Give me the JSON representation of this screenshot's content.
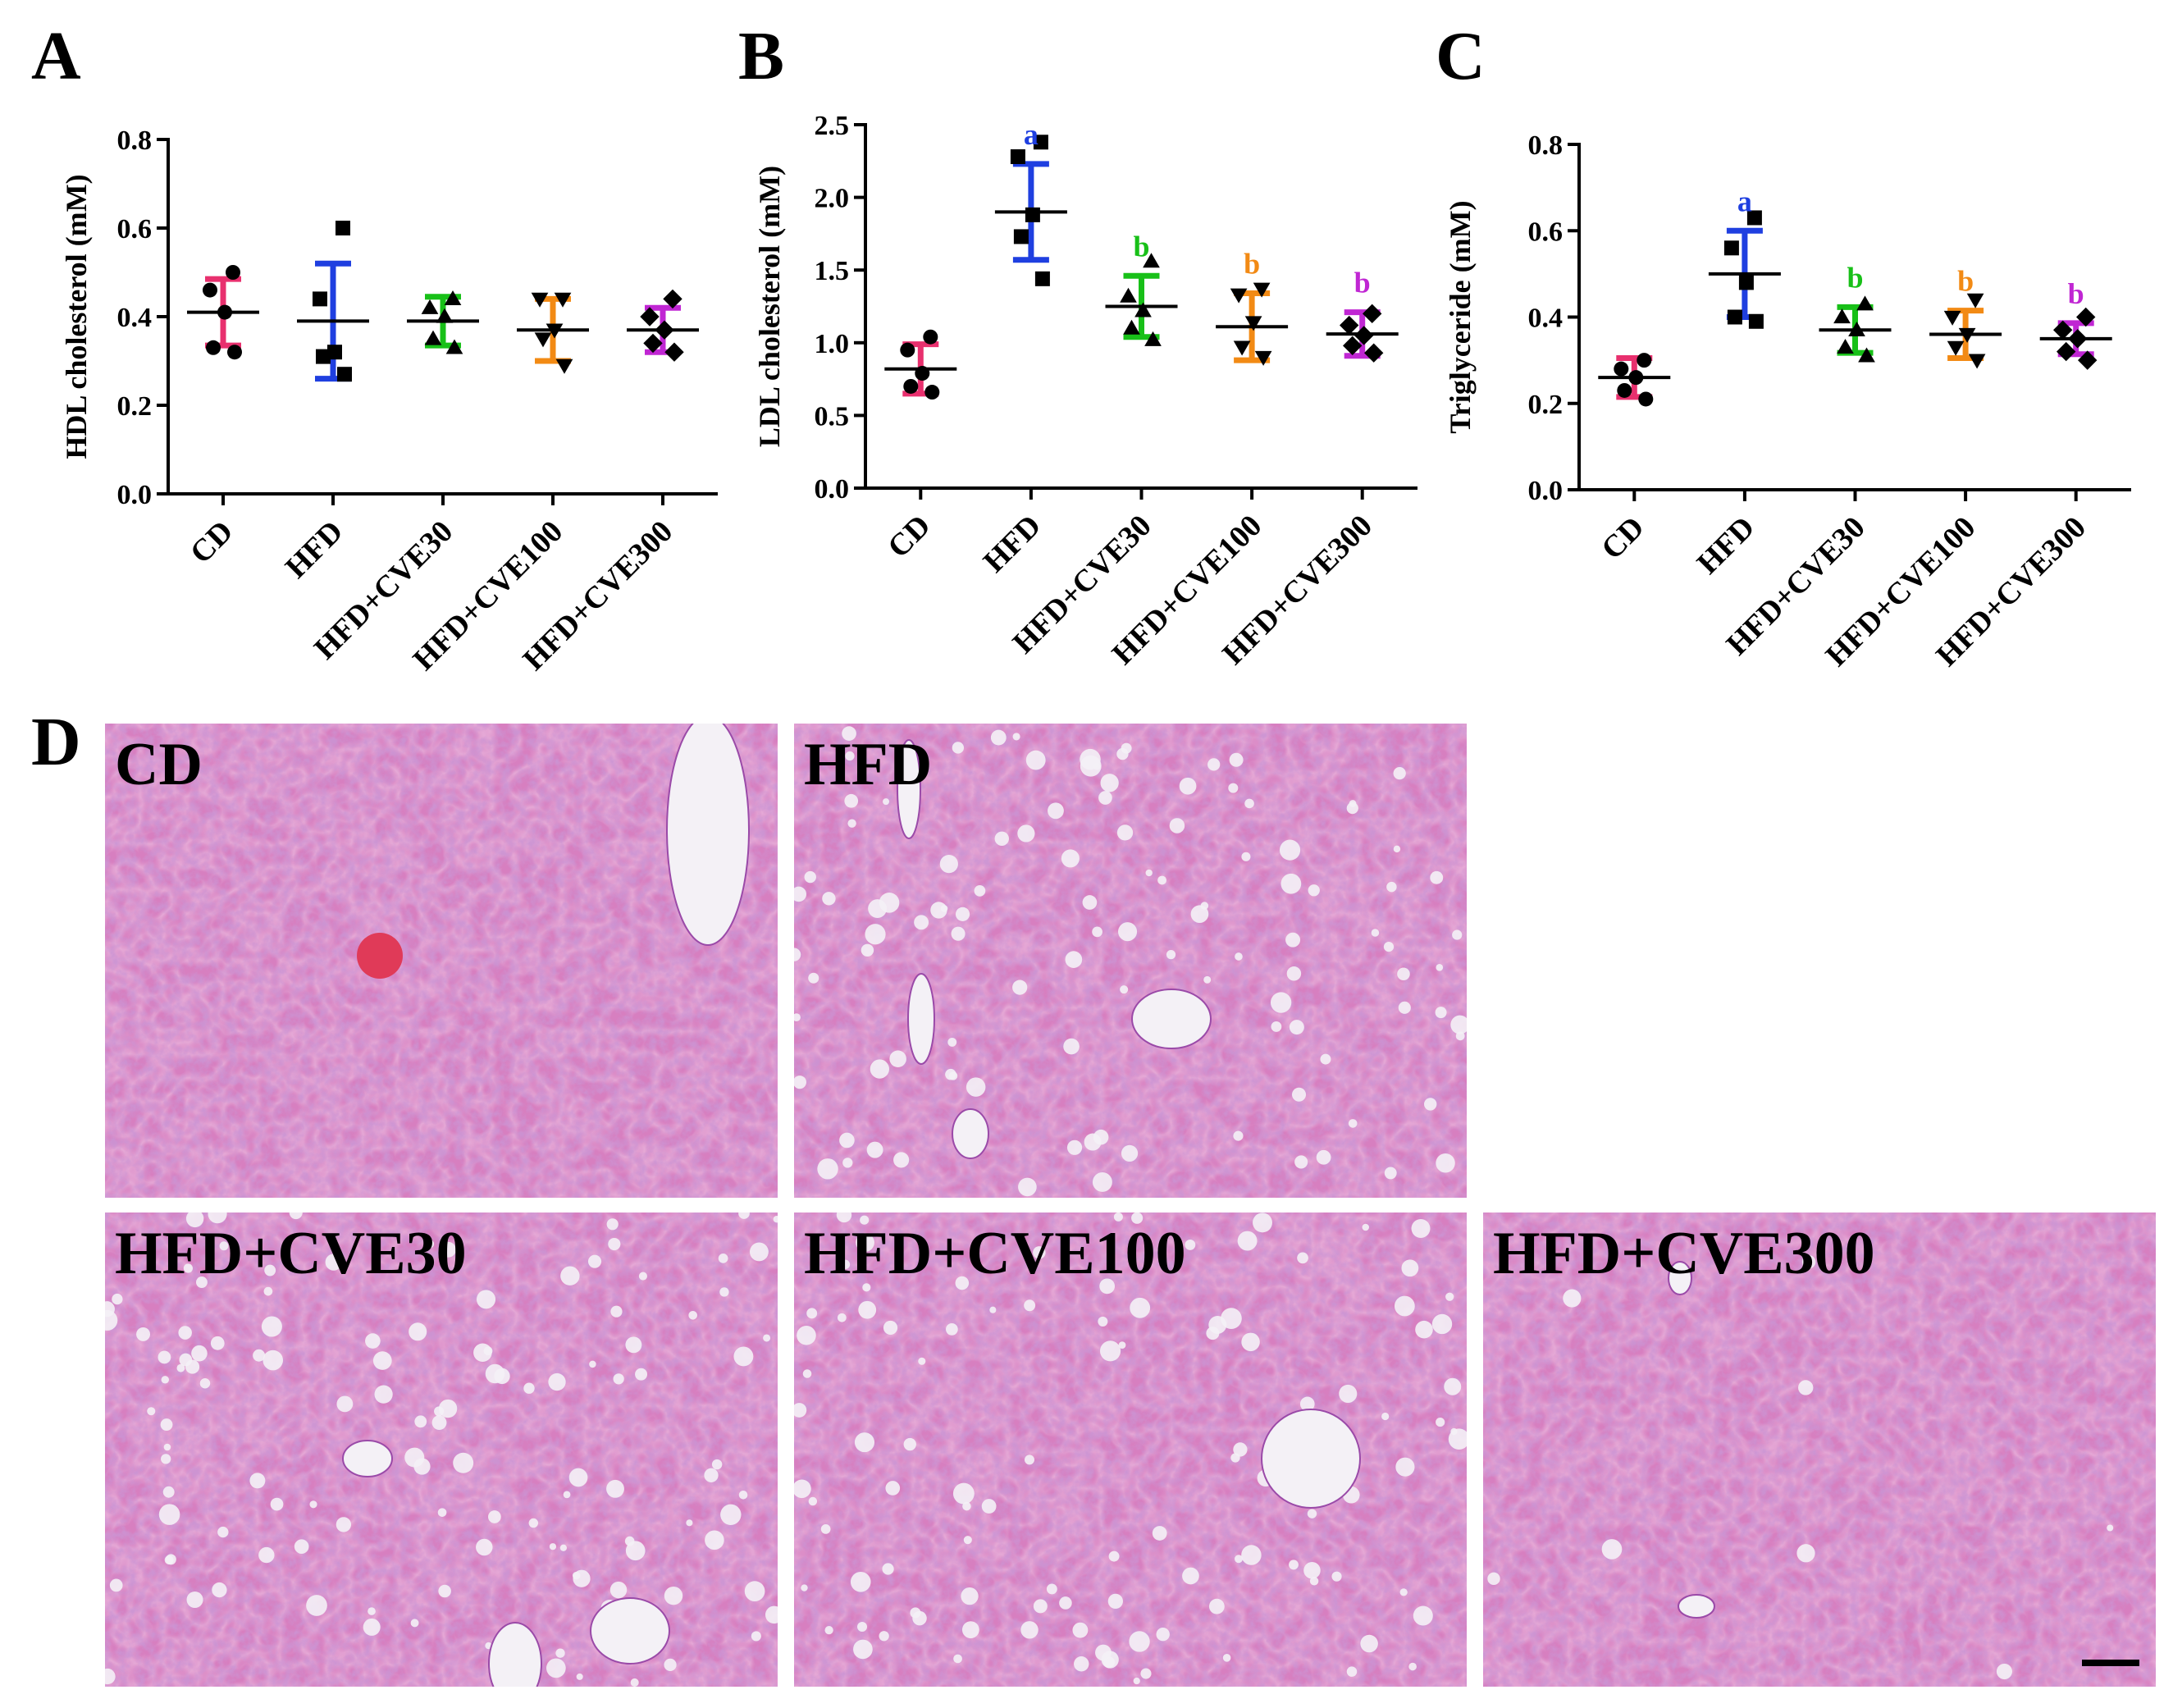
{
  "colors": {
    "CD": "#e8306e",
    "HFD": "#1f3fe0",
    "HFD+CVE30": "#18c018",
    "HFD+CVE100": "#f28a14",
    "HFD+CVE300": "#c026d3",
    "mean_line": "#000000",
    "tissue_base": "#d77fc0",
    "tissue_dark": "#9a4aa8",
    "vessel": "#f4f1f6",
    "blood": "#e03a58"
  },
  "icon_names": {
    "point_markers": [
      "circle",
      "square",
      "triangle-up",
      "triangle-down",
      "diamond"
    ]
  },
  "panel_d": {
    "letter": "D",
    "scale_bar": true,
    "images": [
      {
        "label": "CD"
      },
      {
        "label": "HFD"
      },
      {
        "label": "HFD+CVE30"
      },
      {
        "label": "HFD+CVE100"
      },
      {
        "label": "HFD+CVE300"
      }
    ]
  },
  "chart_data": [
    {
      "type": "scatter",
      "panel": "A",
      "ylabel": "HDL cholesterol (mM)",
      "ylim": [
        0.0,
        0.8
      ],
      "yticks": [
        "0.0",
        "0.2",
        "0.4",
        "0.6",
        "0.8"
      ],
      "categories": [
        "CD",
        "HFD",
        "HFD+CVE30",
        "HFD+CVE100",
        "HFD+CVE300"
      ],
      "series": [
        {
          "category": "CD",
          "marker": "circle",
          "mean": 0.41,
          "sd": 0.075,
          "points": [
            0.5,
            0.46,
            0.41,
            0.33,
            0.32
          ],
          "significance": ""
        },
        {
          "category": "HFD",
          "marker": "square",
          "mean": 0.39,
          "sd": 0.13,
          "points": [
            0.6,
            0.44,
            0.32,
            0.31,
            0.27
          ],
          "significance": ""
        },
        {
          "category": "HFD+CVE30",
          "marker": "triangle-up",
          "mean": 0.39,
          "sd": 0.055,
          "points": [
            0.44,
            0.42,
            0.4,
            0.35,
            0.33
          ],
          "significance": ""
        },
        {
          "category": "HFD+CVE100",
          "marker": "triangle-down",
          "mean": 0.37,
          "sd": 0.07,
          "points": [
            0.44,
            0.44,
            0.37,
            0.35,
            0.29
          ],
          "significance": ""
        },
        {
          "category": "HFD+CVE300",
          "marker": "diamond",
          "mean": 0.37,
          "sd": 0.05,
          "points": [
            0.44,
            0.4,
            0.37,
            0.34,
            0.32
          ],
          "significance": ""
        }
      ]
    },
    {
      "type": "scatter",
      "panel": "B",
      "ylabel": "LDL cholesterol (mM)",
      "ylim": [
        0.0,
        2.5
      ],
      "yticks": [
        "0.0",
        "0.5",
        "1.0",
        "1.5",
        "2.0",
        "2.5"
      ],
      "categories": [
        "CD",
        "HFD",
        "HFD+CVE30",
        "HFD+CVE100",
        "HFD+CVE300"
      ],
      "series": [
        {
          "category": "CD",
          "marker": "circle",
          "mean": 0.82,
          "sd": 0.17,
          "points": [
            1.04,
            0.95,
            0.79,
            0.7,
            0.66
          ],
          "significance": ""
        },
        {
          "category": "HFD",
          "marker": "square",
          "mean": 1.9,
          "sd": 0.33,
          "points": [
            2.38,
            2.28,
            1.88,
            1.73,
            1.44
          ],
          "significance": "a"
        },
        {
          "category": "HFD+CVE30",
          "marker": "triangle-up",
          "mean": 1.25,
          "sd": 0.21,
          "points": [
            1.56,
            1.32,
            1.22,
            1.1,
            1.02
          ],
          "significance": "b"
        },
        {
          "category": "HFD+CVE100",
          "marker": "triangle-down",
          "mean": 1.11,
          "sd": 0.23,
          "points": [
            1.37,
            1.33,
            1.14,
            0.97,
            0.9
          ],
          "significance": "b"
        },
        {
          "category": "HFD+CVE300",
          "marker": "diamond",
          "mean": 1.06,
          "sd": 0.15,
          "points": [
            1.2,
            1.12,
            1.05,
            0.98,
            0.93
          ],
          "significance": "b"
        }
      ]
    },
    {
      "type": "scatter",
      "panel": "C",
      "ylabel": "Triglyceride (mM)",
      "ylim": [
        0.0,
        0.8
      ],
      "yticks": [
        "0.0",
        "0.2",
        "0.4",
        "0.6",
        "0.8"
      ],
      "categories": [
        "CD",
        "HFD",
        "HFD+CVE30",
        "HFD+CVE100",
        "HFD+CVE300"
      ],
      "series": [
        {
          "category": "CD",
          "marker": "circle",
          "mean": 0.26,
          "sd": 0.045,
          "points": [
            0.3,
            0.28,
            0.26,
            0.23,
            0.21
          ],
          "significance": ""
        },
        {
          "category": "HFD",
          "marker": "square",
          "mean": 0.5,
          "sd": 0.1,
          "points": [
            0.63,
            0.56,
            0.48,
            0.4,
            0.39
          ],
          "significance": "a"
        },
        {
          "category": "HFD+CVE30",
          "marker": "triangle-up",
          "mean": 0.37,
          "sd": 0.053,
          "points": [
            0.43,
            0.4,
            0.37,
            0.33,
            0.31
          ],
          "significance": "b"
        },
        {
          "category": "HFD+CVE100",
          "marker": "triangle-down",
          "mean": 0.36,
          "sd": 0.055,
          "points": [
            0.44,
            0.4,
            0.36,
            0.33,
            0.3
          ],
          "significance": "b"
        },
        {
          "category": "HFD+CVE300",
          "marker": "diamond",
          "mean": 0.35,
          "sd": 0.036,
          "points": [
            0.4,
            0.37,
            0.35,
            0.32,
            0.3
          ],
          "significance": "b"
        }
      ]
    }
  ]
}
